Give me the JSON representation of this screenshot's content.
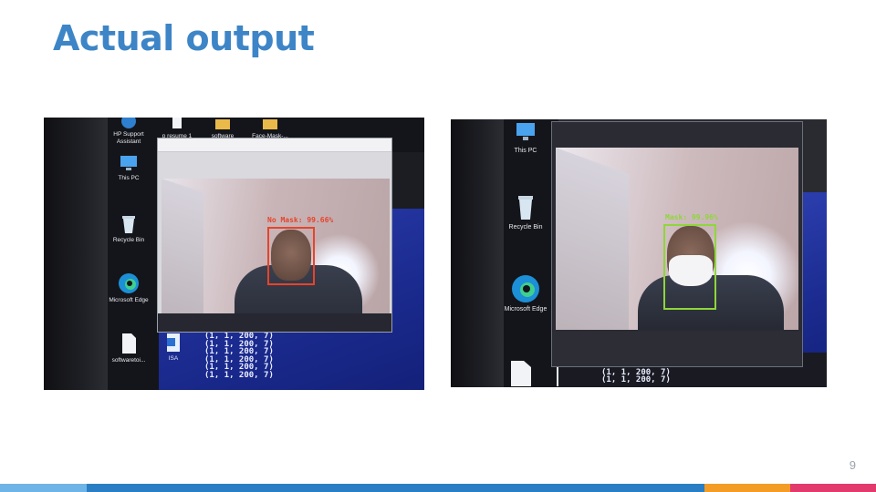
{
  "slide": {
    "title": "Actual output",
    "page_number": "9"
  },
  "photo_left": {
    "desktop_icons": [
      {
        "label": "HP Support Assistant",
        "icon": "hp-support-icon"
      },
      {
        "label": "This PC",
        "icon": "computer-icon"
      },
      {
        "label": "Recycle Bin",
        "icon": "recycle-bin-icon"
      },
      {
        "label": "Microsoft Edge",
        "icon": "edge-icon"
      },
      {
        "label": "softwaretoi...",
        "icon": "file-icon"
      }
    ],
    "top_icons": [
      {
        "label": "p resume 1",
        "icon": "file-icon"
      },
      {
        "label": "software",
        "icon": "folder-icon"
      },
      {
        "label": "Face-Mask-...",
        "icon": "folder-icon"
      }
    ],
    "isa_icon": {
      "label": "ISA",
      "icon": "word-doc-icon"
    },
    "detection": {
      "label": "No Mask: 99.66%",
      "color": "#e8432a"
    },
    "console_lines": [
      "(1, 1, 200, 7)",
      "(1, 1, 200, 7)",
      "(1, 1, 200, 7)",
      "(1, 1, 200, 7)",
      "(1, 1, 200, 7)",
      "(1, 1, 200, 7)"
    ]
  },
  "photo_right": {
    "desktop_icons": [
      {
        "label": "This PC",
        "icon": "computer-icon"
      },
      {
        "label": "Recycle Bin",
        "icon": "recycle-bin-icon"
      },
      {
        "label": "Microsoft Edge",
        "icon": "edge-icon"
      }
    ],
    "detection": {
      "label": "Mask: 99.96%",
      "color": "#8fd63a"
    },
    "console_lines": [
      "(1, 1, 200, 7)",
      "(1, 1, 200, 7)",
      "(1, 1, 200, 7)"
    ]
  },
  "footer": {
    "colors": [
      "#6fb4e6",
      "#2a7fc4",
      "#f39c26",
      "#e23a6d"
    ]
  }
}
